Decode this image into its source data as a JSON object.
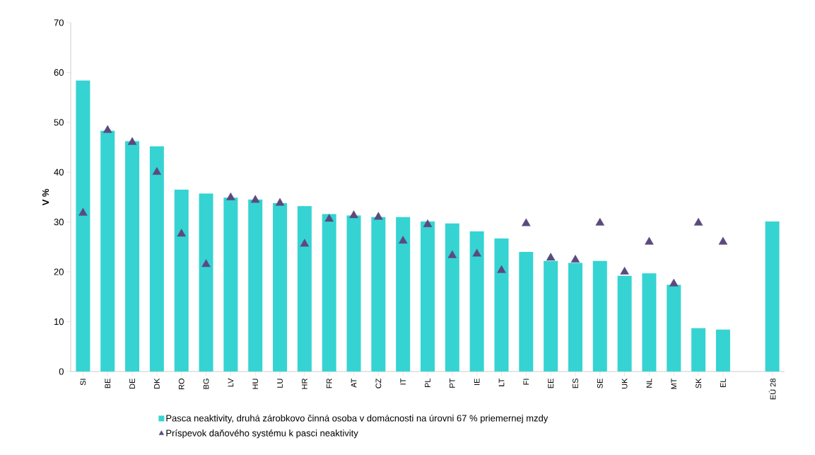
{
  "chart_data": {
    "type": "bar",
    "ylabel": "V %",
    "categories": [
      "SI",
      "BE",
      "DE",
      "DK",
      "RO",
      "BG",
      "LV",
      "HU",
      "LU",
      "HR",
      "FR",
      "AT",
      "CZ",
      "IT",
      "PL",
      "PT",
      "IE",
      "LT",
      "FI",
      "EE",
      "ES",
      "SE",
      "UK",
      "NL",
      "MT",
      "SK",
      "EL",
      null,
      "EÚ 28"
    ],
    "series": [
      {
        "name": "Pasca neaktivity, druhá zárobkovo činná osoba v domácnosti na úrovni 67 % priemernej mzdy",
        "color": "#36d3d3",
        "values": [
          58.4,
          48.3,
          46.2,
          45.2,
          36.5,
          35.7,
          34.9,
          34.5,
          33.8,
          33.2,
          31.6,
          31.3,
          31.0,
          31.0,
          30.1,
          29.7,
          28.1,
          26.7,
          24.0,
          22.2,
          21.8,
          22.2,
          19.2,
          19.7,
          17.4,
          8.7,
          8.4,
          null,
          30.1
        ]
      },
      {
        "name": "Príspevok daňového systému k pasci neaktivity",
        "type": "scatter",
        "marker": "triangle",
        "color": "#5b4a7d",
        "values": [
          31.8,
          48.4,
          46.0,
          40.0,
          27.6,
          21.5,
          34.9,
          34.4,
          33.8,
          25.6,
          30.6,
          31.3,
          31.0,
          26.2,
          29.5,
          23.3,
          23.6,
          20.3,
          29.7,
          22.8,
          22.4,
          29.8,
          20.0,
          26.0,
          17.6,
          29.8,
          26.0,
          null,
          null
        ]
      }
    ],
    "ylim": [
      0,
      70
    ],
    "yticks": [
      0,
      10,
      20,
      30,
      40,
      50,
      60,
      70
    ],
    "grid": false,
    "legend": "bottom"
  }
}
